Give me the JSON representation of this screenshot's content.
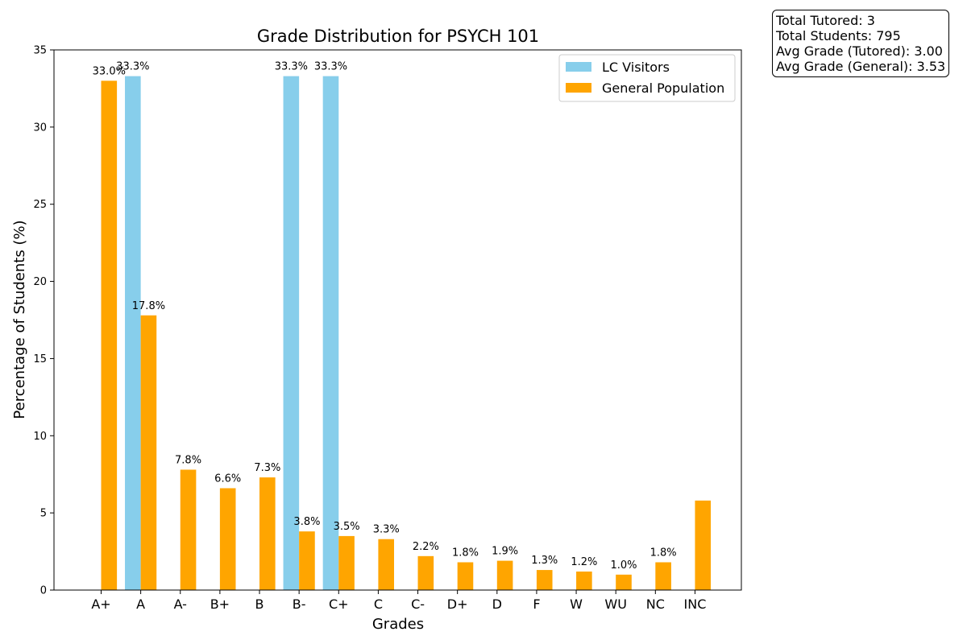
{
  "chart_data": {
    "type": "bar",
    "title": "Grade Distribution for PSYCH 101",
    "xlabel": "Grades",
    "ylabel": "Percentage of Students (%)",
    "ylim": [
      0,
      35
    ],
    "yticks": [
      0,
      5,
      10,
      15,
      20,
      25,
      30,
      35
    ],
    "categories": [
      "A+",
      "A",
      "A-",
      "B+",
      "B",
      "B-",
      "C+",
      "C",
      "C-",
      "D+",
      "D",
      "F",
      "W",
      "WU",
      "NC",
      "INC"
    ],
    "series": [
      {
        "name": "LC Visitors",
        "color": "#87CEEB",
        "values": [
          0,
          33.3,
          0,
          0,
          0,
          33.3,
          33.3,
          0,
          0,
          0,
          0,
          0,
          0,
          0,
          0,
          0
        ],
        "labels": [
          "",
          "33.3%",
          "",
          "",
          "",
          "33.3%",
          "33.3%",
          "",
          "",
          "",
          "",
          "",
          "",
          "",
          "",
          ""
        ]
      },
      {
        "name": "General Population",
        "color": "#FFA500",
        "values": [
          33.0,
          17.8,
          7.8,
          6.6,
          7.3,
          3.8,
          3.5,
          3.3,
          2.2,
          1.8,
          1.9,
          1.3,
          1.2,
          1.0,
          1.8,
          5.8
        ],
        "labels": [
          "33.0%",
          "17.8%",
          "7.8%",
          "6.6%",
          "7.3%",
          "3.8%",
          "3.5%",
          "3.3%",
          "2.2%",
          "1.8%",
          "1.9%",
          "1.3%",
          "1.2%",
          "1.0%",
          "1.8%",
          ""
        ]
      }
    ],
    "legend": "top-right",
    "grid": false
  },
  "stats": {
    "total_tutored": "Total Tutored: 3",
    "total_students": "Total Students: 795",
    "avg_tutored": "Avg Grade (Tutored): 3.00",
    "avg_general": "Avg Grade (General): 3.53"
  }
}
